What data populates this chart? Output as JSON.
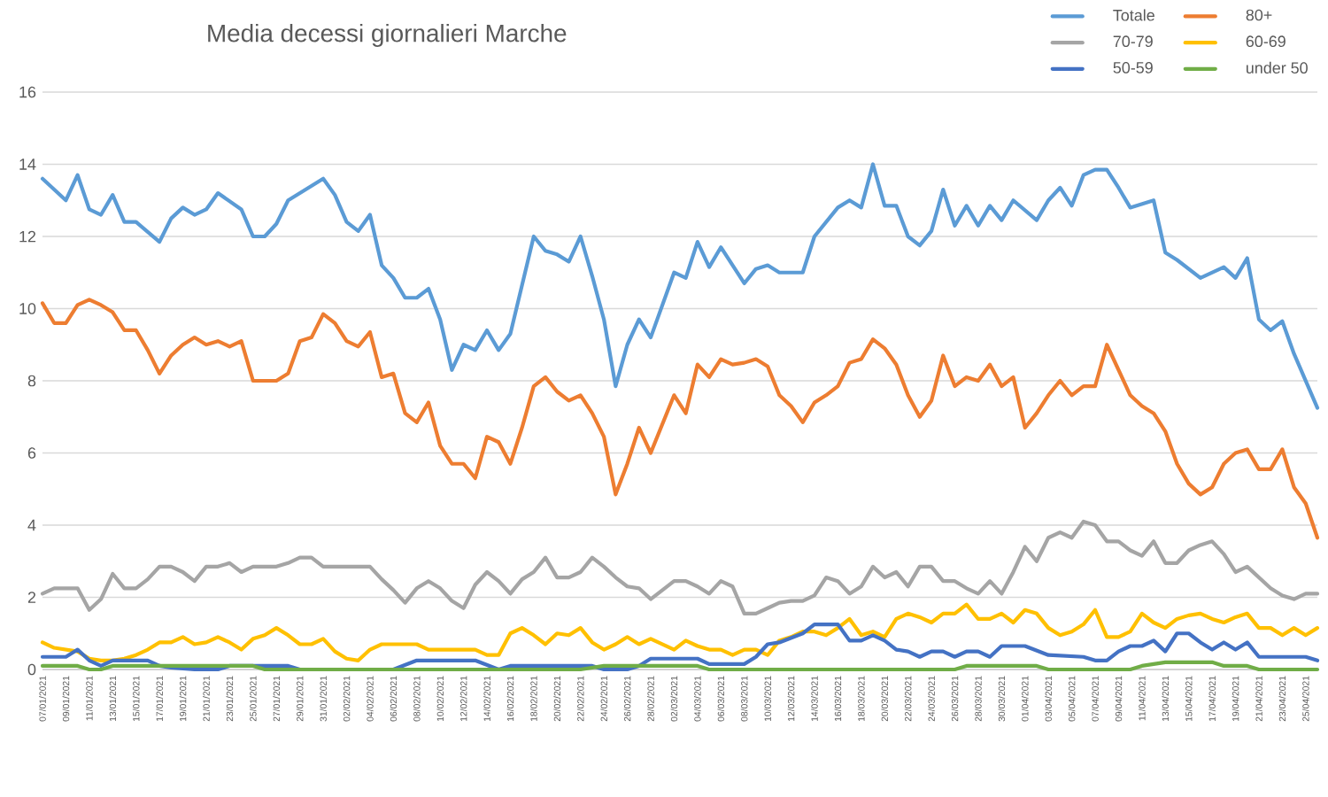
{
  "chart_data": {
    "type": "line",
    "title": "Media decessi giornalieri Marche",
    "xlim": [
      "2021-01-07",
      "2021-04-26"
    ],
    "ylim": [
      0,
      16
    ],
    "yticks": [
      0,
      2,
      4,
      6,
      8,
      10,
      12,
      14,
      16
    ],
    "xticks": [
      {
        "value": "2021-01-07",
        "label": "07/01/2021"
      },
      {
        "value": "2021-01-09",
        "label": "09/01/2021"
      },
      {
        "value": "2021-01-11",
        "label": "11/01/2021"
      },
      {
        "value": "2021-01-13",
        "label": "13/01/2021"
      },
      {
        "value": "2021-01-15",
        "label": "15/01/2021"
      },
      {
        "value": "2021-01-17",
        "label": "17/01/2021"
      },
      {
        "value": "2021-01-19",
        "label": "19/01/2021"
      },
      {
        "value": "2021-01-21",
        "label": "21/01/2021"
      },
      {
        "value": "2021-01-23",
        "label": "23/01/2021"
      },
      {
        "value": "2021-01-25",
        "label": "25/01/2021"
      },
      {
        "value": "2021-01-27",
        "label": "27/01/2021"
      },
      {
        "value": "2021-01-29",
        "label": "29/01/2021"
      },
      {
        "value": "2021-01-31",
        "label": "31/01/2021"
      },
      {
        "value": "2021-02-02",
        "label": "02/02/2021"
      },
      {
        "value": "2021-02-04",
        "label": "04/02/2021"
      },
      {
        "value": "2021-02-06",
        "label": "06/02/2021"
      },
      {
        "value": "2021-02-08",
        "label": "08/02/2021"
      },
      {
        "value": "2021-02-10",
        "label": "10/02/2021"
      },
      {
        "value": "2021-02-12",
        "label": "12/02/2021"
      },
      {
        "value": "2021-02-14",
        "label": "14/02/2021"
      },
      {
        "value": "2021-02-16",
        "label": "16/02/2021"
      },
      {
        "value": "2021-02-18",
        "label": "18/02/2021"
      },
      {
        "value": "2021-02-20",
        "label": "20/02/2021"
      },
      {
        "value": "2021-02-22",
        "label": "22/02/2021"
      },
      {
        "value": "2021-02-24",
        "label": "24/02/2021"
      },
      {
        "value": "2021-02-26",
        "label": "26/02/2021"
      },
      {
        "value": "2021-02-28",
        "label": "28/02/2021"
      },
      {
        "value": "2021-03-02",
        "label": "02/03/2021"
      },
      {
        "value": "2021-03-04",
        "label": "04/03/2021"
      },
      {
        "value": "2021-03-06",
        "label": "06/03/2021"
      },
      {
        "value": "2021-03-08",
        "label": "08/03/2021"
      },
      {
        "value": "2021-03-10",
        "label": "10/03/2021"
      },
      {
        "value": "2021-03-12",
        "label": "12/03/2021"
      },
      {
        "value": "2021-03-14",
        "label": "14/03/2021"
      },
      {
        "value": "2021-03-16",
        "label": "16/03/2021"
      },
      {
        "value": "2021-03-18",
        "label": "18/03/2021"
      },
      {
        "value": "2021-03-20",
        "label": "20/03/2021"
      },
      {
        "value": "2021-03-22",
        "label": "22/03/2021"
      },
      {
        "value": "2021-03-24",
        "label": "24/03/2021"
      },
      {
        "value": "2021-03-26",
        "label": "26/03/2021"
      },
      {
        "value": "2021-03-28",
        "label": "28/03/2021"
      },
      {
        "value": "2021-03-30",
        "label": "30/03/2021"
      },
      {
        "value": "2021-04-01",
        "label": "01/04/2021"
      },
      {
        "value": "2021-04-03",
        "label": "03/04/2021"
      },
      {
        "value": "2021-04-05",
        "label": "05/04/2021"
      },
      {
        "value": "2021-04-07",
        "label": "07/04/2021"
      },
      {
        "value": "2021-04-09",
        "label": "09/04/2021"
      },
      {
        "value": "2021-04-11",
        "label": "11/04/2021"
      },
      {
        "value": "2021-04-13",
        "label": "13/04/2021"
      },
      {
        "value": "2021-04-15",
        "label": "15/04/2021"
      },
      {
        "value": "2021-04-17",
        "label": "17/04/2021"
      },
      {
        "value": "2021-04-19",
        "label": "19/04/2021"
      },
      {
        "value": "2021-04-21",
        "label": "21/04/2021"
      },
      {
        "value": "2021-04-23",
        "label": "23/04/2021"
      },
      {
        "value": "2021-04-25",
        "label": "25/04/2021"
      }
    ],
    "grid": "y",
    "legend": "top right",
    "series": [
      {
        "name": "Totale",
        "color": "#5b9bd5",
        "x": [
          "2021-01-07",
          "2021-01-09",
          "2021-01-10",
          "2021-01-11",
          "2021-01-12",
          "2021-01-13",
          "2021-01-14",
          "2021-01-15",
          "2021-01-17",
          "2021-01-18",
          "2021-01-19",
          "2021-01-20",
          "2021-01-21",
          "2021-01-22",
          "2021-01-24",
          "2021-01-25",
          "2021-01-26",
          "2021-01-27",
          "2021-01-28",
          "2021-01-29",
          "2021-01-31",
          "2021-02-01",
          "2021-02-02",
          "2021-02-03",
          "2021-02-04",
          "2021-02-05",
          "2021-02-06",
          "2021-02-07",
          "2021-02-08",
          "2021-02-09",
          "2021-02-10",
          "2021-02-11",
          "2021-02-12",
          "2021-02-13",
          "2021-02-14",
          "2021-02-15",
          "2021-02-16",
          "2021-02-18",
          "2021-02-19",
          "2021-02-20",
          "2021-02-21",
          "2021-02-22",
          "2021-02-23",
          "2021-02-24",
          "2021-02-25",
          "2021-02-26",
          "2021-02-27",
          "2021-02-28",
          "2021-03-02",
          "2021-03-03",
          "2021-03-04",
          "2021-03-05",
          "2021-03-06",
          "2021-03-08",
          "2021-03-09",
          "2021-03-10",
          "2021-03-11",
          "2021-03-13",
          "2021-03-14",
          "2021-03-15",
          "2021-03-16",
          "2021-03-17",
          "2021-03-18",
          "2021-03-19",
          "2021-03-20",
          "2021-03-21",
          "2021-03-22",
          "2021-03-23",
          "2021-03-24",
          "2021-03-25",
          "2021-03-26",
          "2021-03-27",
          "2021-03-28",
          "2021-03-29",
          "2021-03-30",
          "2021-03-31",
          "2021-04-02",
          "2021-04-03",
          "2021-04-04",
          "2021-04-05",
          "2021-04-06",
          "2021-04-07",
          "2021-04-08",
          "2021-04-09",
          "2021-04-10",
          "2021-04-12",
          "2021-04-13",
          "2021-04-14",
          "2021-04-16",
          "2021-04-18",
          "2021-04-19",
          "2021-04-20",
          "2021-04-21",
          "2021-04-22",
          "2021-04-23",
          "2021-04-24",
          "2021-04-26"
        ],
        "values": [
          13.6,
          13.0,
          13.7,
          12.75,
          12.6,
          13.15,
          12.4,
          12.4,
          11.85,
          12.5,
          12.8,
          12.6,
          12.75,
          13.2,
          12.75,
          12.0,
          12.0,
          12.35,
          13.0,
          13.2,
          13.6,
          13.15,
          12.4,
          12.15,
          12.6,
          11.2,
          10.85,
          10.3,
          10.3,
          10.55,
          9.7,
          8.3,
          9.0,
          8.85,
          9.4,
          8.85,
          9.3,
          12.0,
          11.6,
          11.5,
          11.3,
          12.0,
          10.9,
          9.7,
          7.85,
          9.0,
          9.7,
          9.2,
          11.0,
          10.85,
          11.85,
          11.15,
          11.7,
          10.7,
          11.1,
          11.2,
          11.0,
          11.0,
          12.0,
          12.4,
          12.8,
          13.0,
          12.8,
          14.0,
          12.85,
          12.85,
          12.0,
          11.75,
          12.15,
          13.3,
          12.3,
          12.85,
          12.3,
          12.85,
          12.45,
          13.0,
          12.45,
          13.0,
          13.35,
          12.85,
          13.7,
          13.85,
          13.85,
          13.35,
          12.8,
          13.0,
          11.55,
          11.35,
          10.85,
          11.15,
          10.85,
          11.4,
          9.7,
          9.4,
          9.65,
          8.75,
          7.25
        ]
      },
      {
        "name": "80+",
        "color": "#ed7d31",
        "x": [
          "2021-01-07",
          "2021-01-08",
          "2021-01-09",
          "2021-01-10",
          "2021-01-11",
          "2021-01-12",
          "2021-01-13",
          "2021-01-14",
          "2021-01-15",
          "2021-01-16",
          "2021-01-17",
          "2021-01-18",
          "2021-01-19",
          "2021-01-20",
          "2021-01-21",
          "2021-01-22",
          "2021-01-23",
          "2021-01-24",
          "2021-01-25",
          "2021-01-27",
          "2021-01-28",
          "2021-01-29",
          "2021-01-30",
          "2021-01-31",
          "2021-02-01",
          "2021-02-02",
          "2021-02-03",
          "2021-02-04",
          "2021-02-05",
          "2021-02-06",
          "2021-02-07",
          "2021-02-08",
          "2021-02-09",
          "2021-02-10",
          "2021-02-11",
          "2021-02-12",
          "2021-02-13",
          "2021-02-14",
          "2021-02-15",
          "2021-02-16",
          "2021-02-17",
          "2021-02-18",
          "2021-02-19",
          "2021-02-20",
          "2021-02-21",
          "2021-02-22",
          "2021-02-23",
          "2021-02-24",
          "2021-02-25",
          "2021-02-26",
          "2021-02-27",
          "2021-02-28",
          "2021-03-02",
          "2021-03-03",
          "2021-03-04",
          "2021-03-05",
          "2021-03-06",
          "2021-03-07",
          "2021-03-08",
          "2021-03-09",
          "2021-03-10",
          "2021-03-11",
          "2021-03-12",
          "2021-03-13",
          "2021-03-14",
          "2021-03-15",
          "2021-03-16",
          "2021-03-17",
          "2021-03-18",
          "2021-03-19",
          "2021-03-20",
          "2021-03-21",
          "2021-03-22",
          "2021-03-23",
          "2021-03-24",
          "2021-03-25",
          "2021-03-26",
          "2021-03-27",
          "2021-03-28",
          "2021-03-29",
          "2021-03-30",
          "2021-03-31",
          "2021-04-01",
          "2021-04-02",
          "2021-04-03",
          "2021-04-04",
          "2021-04-05",
          "2021-04-06",
          "2021-04-07",
          "2021-04-08",
          "2021-04-09",
          "2021-04-10",
          "2021-04-11",
          "2021-04-12",
          "2021-04-13",
          "2021-04-14",
          "2021-04-15",
          "2021-04-16",
          "2021-04-17",
          "2021-04-18",
          "2021-04-19",
          "2021-04-20",
          "2021-04-21",
          "2021-04-22",
          "2021-04-23",
          "2021-04-24",
          "2021-04-25",
          "2021-04-26"
        ],
        "values": [
          10.15,
          9.6,
          9.6,
          10.1,
          10.25,
          10.1,
          9.9,
          9.4,
          9.4,
          8.85,
          8.2,
          8.7,
          9.0,
          9.2,
          9.0,
          9.1,
          8.95,
          9.1,
          8.0,
          8.0,
          8.2,
          9.1,
          9.2,
          9.85,
          9.6,
          9.1,
          8.95,
          9.35,
          8.1,
          8.2,
          7.1,
          6.85,
          7.4,
          6.2,
          5.7,
          5.7,
          5.3,
          6.45,
          6.3,
          5.7,
          6.7,
          7.85,
          8.1,
          7.7,
          7.45,
          7.6,
          7.1,
          6.45,
          4.85,
          5.7,
          6.7,
          6.0,
          7.6,
          7.1,
          8.45,
          8.1,
          8.6,
          8.45,
          8.5,
          8.6,
          8.4,
          7.6,
          7.3,
          6.85,
          7.4,
          7.6,
          7.85,
          8.5,
          8.6,
          9.15,
          8.9,
          8.45,
          7.6,
          7.0,
          7.45,
          8.7,
          7.85,
          8.1,
          8.0,
          8.45,
          7.85,
          8.1,
          6.7,
          7.1,
          7.6,
          8.0,
          7.6,
          7.85,
          7.85,
          9.0,
          8.3,
          7.6,
          7.3,
          7.1,
          6.6,
          5.7,
          5.15,
          4.85,
          5.05,
          5.7,
          6.0,
          6.1,
          5.55,
          5.55,
          6.1,
          5.05,
          4.6,
          3.65
        ]
      },
      {
        "name": "70-79",
        "color": "#a5a5a5",
        "x": [
          "2021-01-07",
          "2021-01-08",
          "2021-01-10",
          "2021-01-11",
          "2021-01-12",
          "2021-01-13",
          "2021-01-14",
          "2021-01-15",
          "2021-01-16",
          "2021-01-17",
          "2021-01-18",
          "2021-01-19",
          "2021-01-20",
          "2021-01-21",
          "2021-01-22",
          "2021-01-23",
          "2021-01-24",
          "2021-01-25",
          "2021-01-27",
          "2021-01-28",
          "2021-01-29",
          "2021-01-30",
          "2021-01-31",
          "2021-02-04",
          "2021-02-05",
          "2021-02-06",
          "2021-02-07",
          "2021-02-08",
          "2021-02-09",
          "2021-02-10",
          "2021-02-11",
          "2021-02-12",
          "2021-02-13",
          "2021-02-14",
          "2021-02-15",
          "2021-02-16",
          "2021-02-17",
          "2021-02-18",
          "2021-02-19",
          "2021-02-20",
          "2021-02-21",
          "2021-02-22",
          "2021-02-23",
          "2021-02-24",
          "2021-02-25",
          "2021-02-26",
          "2021-02-27",
          "2021-02-28",
          "2021-03-01",
          "2021-03-02",
          "2021-03-03",
          "2021-03-04",
          "2021-03-05",
          "2021-03-06",
          "2021-03-07",
          "2021-03-08",
          "2021-03-09",
          "2021-03-10",
          "2021-03-11",
          "2021-03-12",
          "2021-03-13",
          "2021-03-14",
          "2021-03-15",
          "2021-03-16",
          "2021-03-17",
          "2021-03-18",
          "2021-03-19",
          "2021-03-20",
          "2021-03-21",
          "2021-03-22",
          "2021-03-23",
          "2021-03-24",
          "2021-03-25",
          "2021-03-26",
          "2021-03-27",
          "2021-03-28",
          "2021-03-29",
          "2021-03-30",
          "2021-03-31",
          "2021-04-01",
          "2021-04-02",
          "2021-04-03",
          "2021-04-04",
          "2021-04-05",
          "2021-04-06",
          "2021-04-07",
          "2021-04-08",
          "2021-04-09",
          "2021-04-10",
          "2021-04-11",
          "2021-04-12",
          "2021-04-13",
          "2021-04-14",
          "2021-04-15",
          "2021-04-16",
          "2021-04-17",
          "2021-04-18",
          "2021-04-19",
          "2021-04-20",
          "2021-04-21",
          "2021-04-22",
          "2021-04-23",
          "2021-04-24",
          "2021-04-25",
          "2021-04-26"
        ],
        "values": [
          2.1,
          2.25,
          2.25,
          1.65,
          1.95,
          2.65,
          2.25,
          2.25,
          2.5,
          2.85,
          2.85,
          2.7,
          2.45,
          2.85,
          2.85,
          2.95,
          2.7,
          2.85,
          2.85,
          2.95,
          3.1,
          3.1,
          2.85,
          2.85,
          2.5,
          2.2,
          1.85,
          2.25,
          2.45,
          2.25,
          1.9,
          1.7,
          2.35,
          2.7,
          2.45,
          2.1,
          2.5,
          2.7,
          3.1,
          2.55,
          2.55,
          2.7,
          3.1,
          2.85,
          2.55,
          2.3,
          2.25,
          1.95,
          2.2,
          2.45,
          2.45,
          2.3,
          2.1,
          2.45,
          2.3,
          1.55,
          1.55,
          1.7,
          1.85,
          1.9,
          1.9,
          2.05,
          2.55,
          2.45,
          2.1,
          2.3,
          2.85,
          2.55,
          2.7,
          2.3,
          2.85,
          2.85,
          2.45,
          2.45,
          2.25,
          2.1,
          2.45,
          2.1,
          2.7,
          3.4,
          3.0,
          3.65,
          3.8,
          3.65,
          4.1,
          4.0,
          3.55,
          3.55,
          3.3,
          3.15,
          3.55,
          2.95,
          2.95,
          3.3,
          3.45,
          3.55,
          3.2,
          2.7,
          2.85,
          2.55,
          2.25,
          2.05,
          1.95,
          2.1,
          2.1
        ]
      },
      {
        "name": "60-69",
        "color": "#ffc000",
        "x": [
          "2021-01-07",
          "2021-01-08",
          "2021-01-10",
          "2021-01-11",
          "2021-01-12",
          "2021-01-13",
          "2021-01-14",
          "2021-01-15",
          "2021-01-16",
          "2021-01-17",
          "2021-01-18",
          "2021-01-19",
          "2021-01-20",
          "2021-01-21",
          "2021-01-22",
          "2021-01-23",
          "2021-01-24",
          "2021-01-25",
          "2021-01-26",
          "2021-01-27",
          "2021-01-28",
          "2021-01-29",
          "2021-01-30",
          "2021-01-31",
          "2021-02-01",
          "2021-02-02",
          "2021-02-03",
          "2021-02-04",
          "2021-02-05",
          "2021-02-07",
          "2021-02-08",
          "2021-02-09",
          "2021-02-12",
          "2021-02-13",
          "2021-02-14",
          "2021-02-15",
          "2021-02-16",
          "2021-02-17",
          "2021-02-18",
          "2021-02-19",
          "2021-02-20",
          "2021-02-21",
          "2021-02-22",
          "2021-02-23",
          "2021-02-24",
          "2021-02-25",
          "2021-02-26",
          "2021-02-27",
          "2021-02-28",
          "2021-03-02",
          "2021-03-03",
          "2021-03-04",
          "2021-03-05",
          "2021-03-06",
          "2021-03-07",
          "2021-03-08",
          "2021-03-09",
          "2021-03-10",
          "2021-03-11",
          "2021-03-12",
          "2021-03-13",
          "2021-03-14",
          "2021-03-15",
          "2021-03-16",
          "2021-03-17",
          "2021-03-18",
          "2021-03-19",
          "2021-03-20",
          "2021-03-21",
          "2021-03-22",
          "2021-03-23",
          "2021-03-24",
          "2021-03-25",
          "2021-03-26",
          "2021-03-27",
          "2021-03-28",
          "2021-03-29",
          "2021-03-30",
          "2021-03-31",
          "2021-04-01",
          "2021-04-02",
          "2021-04-03",
          "2021-04-04",
          "2021-04-05",
          "2021-04-06",
          "2021-04-07",
          "2021-04-08",
          "2021-04-09",
          "2021-04-10",
          "2021-04-11",
          "2021-04-12",
          "2021-04-13",
          "2021-04-14",
          "2021-04-15",
          "2021-04-16",
          "2021-04-17",
          "2021-04-18",
          "2021-04-19",
          "2021-04-20",
          "2021-04-21",
          "2021-04-22",
          "2021-04-23",
          "2021-04-24",
          "2021-04-25",
          "2021-04-26"
        ],
        "values": [
          0.75,
          0.6,
          0.5,
          0.3,
          0.25,
          0.25,
          0.3,
          0.4,
          0.55,
          0.75,
          0.75,
          0.9,
          0.7,
          0.75,
          0.9,
          0.75,
          0.55,
          0.85,
          0.95,
          1.15,
          0.95,
          0.7,
          0.7,
          0.85,
          0.5,
          0.3,
          0.25,
          0.55,
          0.7,
          0.7,
          0.7,
          0.55,
          0.55,
          0.55,
          0.4,
          0.4,
          1.0,
          1.15,
          0.95,
          0.7,
          1.0,
          0.95,
          1.15,
          0.75,
          0.55,
          0.7,
          0.9,
          0.7,
          0.85,
          0.55,
          0.8,
          0.65,
          0.55,
          0.55,
          0.4,
          0.55,
          0.55,
          0.4,
          0.8,
          0.9,
          1.05,
          1.05,
          0.95,
          1.15,
          1.4,
          0.95,
          1.05,
          0.9,
          1.4,
          1.55,
          1.45,
          1.3,
          1.55,
          1.55,
          1.8,
          1.4,
          1.4,
          1.55,
          1.3,
          1.65,
          1.55,
          1.15,
          0.95,
          1.05,
          1.25,
          1.65,
          0.9,
          0.9,
          1.05,
          1.55,
          1.3,
          1.15,
          1.4,
          1.5,
          1.55,
          1.4,
          1.3,
          1.45,
          1.55,
          1.15,
          1.15,
          0.95,
          1.15,
          0.95,
          1.15
        ]
      },
      {
        "name": "50-59",
        "color": "#4472c4",
        "x": [
          "2021-01-07",
          "2021-01-09",
          "2021-01-10",
          "2021-01-11",
          "2021-01-12",
          "2021-01-13",
          "2021-01-16",
          "2021-01-17",
          "2021-01-18",
          "2021-01-20",
          "2021-01-22",
          "2021-01-23",
          "2021-01-28",
          "2021-01-29",
          "2021-02-06",
          "2021-02-08",
          "2021-02-13",
          "2021-02-15",
          "2021-02-16",
          "2021-02-23",
          "2021-02-24",
          "2021-02-26",
          "2021-02-27",
          "2021-02-28",
          "2021-03-04",
          "2021-03-05",
          "2021-03-08",
          "2021-03-09",
          "2021-03-10",
          "2021-03-11",
          "2021-03-13",
          "2021-03-14",
          "2021-03-16",
          "2021-03-17",
          "2021-03-18",
          "2021-03-19",
          "2021-03-20",
          "2021-03-21",
          "2021-03-22",
          "2021-03-23",
          "2021-03-24",
          "2021-03-25",
          "2021-03-26",
          "2021-03-27",
          "2021-03-28",
          "2021-03-29",
          "2021-03-30",
          "2021-04-01",
          "2021-04-03",
          "2021-04-06",
          "2021-04-07",
          "2021-04-08",
          "2021-04-09",
          "2021-04-10",
          "2021-04-11",
          "2021-04-12",
          "2021-04-13",
          "2021-04-14",
          "2021-04-15",
          "2021-04-16",
          "2021-04-17",
          "2021-04-18",
          "2021-04-19",
          "2021-04-20",
          "2021-04-21",
          "2021-04-25",
          "2021-04-26"
        ],
        "values": [
          0.35,
          0.35,
          0.55,
          0.25,
          0.1,
          0.25,
          0.25,
          0.1,
          0.05,
          0,
          0,
          0.1,
          0.1,
          0,
          0,
          0.25,
          0.25,
          0,
          0.1,
          0.1,
          0,
          0,
          0.1,
          0.3,
          0.3,
          0.15,
          0.15,
          0.35,
          0.7,
          0.75,
          1.0,
          1.25,
          1.25,
          0.8,
          0.8,
          0.95,
          0.8,
          0.55,
          0.5,
          0.35,
          0.5,
          0.5,
          0.35,
          0.5,
          0.5,
          0.35,
          0.65,
          0.65,
          0.4,
          0.35,
          0.25,
          0.25,
          0.5,
          0.65,
          0.65,
          0.8,
          0.5,
          1.0,
          1.0,
          0.75,
          0.55,
          0.75,
          0.55,
          0.75,
          0.35,
          0.35,
          0.25
        ]
      },
      {
        "name": "under 50",
        "color": "#70ad47",
        "x": [
          "2021-01-07",
          "2021-01-10",
          "2021-01-11",
          "2021-01-12",
          "2021-01-13",
          "2021-01-25",
          "2021-01-26",
          "2021-02-22",
          "2021-02-24",
          "2021-03-04",
          "2021-03-05",
          "2021-03-26",
          "2021-03-27",
          "2021-04-02",
          "2021-04-03",
          "2021-04-10",
          "2021-04-11",
          "2021-04-13",
          "2021-04-17",
          "2021-04-18",
          "2021-04-20",
          "2021-04-21",
          "2021-04-26"
        ],
        "values": [
          0.1,
          0.1,
          0,
          0,
          0.1,
          0.1,
          0,
          0,
          0.1,
          0.1,
          0,
          0,
          0.1,
          0.1,
          0,
          0,
          0.1,
          0.2,
          0.2,
          0.1,
          0.1,
          0,
          0
        ]
      }
    ]
  }
}
